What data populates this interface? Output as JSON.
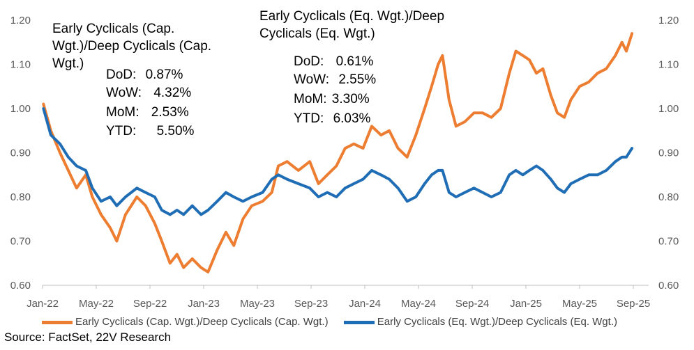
{
  "chart_data": {
    "type": "line",
    "x_tick_labels": [
      "Jan-22",
      "May-22",
      "Sep-22",
      "Jan-23",
      "May-23",
      "Sep-23",
      "Jan-24",
      "May-24",
      "Sep-24",
      "Jan-25",
      "May-25",
      "Sep-25"
    ],
    "y_tick_labels": [
      "0.60",
      "0.70",
      "0.80",
      "0.90",
      "1.00",
      "1.10",
      "1.20"
    ],
    "ylim": [
      0.6,
      1.2
    ],
    "xlim": [
      "2022-01-01",
      "2025-09-15"
    ],
    "grid": false,
    "secondary_axis": "right (same scale)",
    "legend_position": "bottom",
    "series": [
      {
        "name": "Early Cyclicals (Cap. Wgt.)/Deep Cyclicals (Cap. Wgt.)",
        "color": "#ED7D31",
        "points": [
          [
            "2022-01-03",
            1.01
          ],
          [
            "2022-01-20",
            0.95
          ],
          [
            "2022-02-10",
            0.9
          ],
          [
            "2022-03-01",
            0.86
          ],
          [
            "2022-03-20",
            0.82
          ],
          [
            "2022-04-10",
            0.85
          ],
          [
            "2022-04-25",
            0.8
          ],
          [
            "2022-05-15",
            0.76
          ],
          [
            "2022-06-05",
            0.73
          ],
          [
            "2022-06-20",
            0.7
          ],
          [
            "2022-07-10",
            0.76
          ],
          [
            "2022-08-05",
            0.8
          ],
          [
            "2022-08-25",
            0.78
          ],
          [
            "2022-09-15",
            0.74
          ],
          [
            "2022-10-01",
            0.7
          ],
          [
            "2022-10-20",
            0.65
          ],
          [
            "2022-11-05",
            0.67
          ],
          [
            "2022-11-20",
            0.64
          ],
          [
            "2022-12-10",
            0.66
          ],
          [
            "2022-12-30",
            0.64
          ],
          [
            "2023-01-15",
            0.63
          ],
          [
            "2023-02-05",
            0.68
          ],
          [
            "2023-02-25",
            0.72
          ],
          [
            "2023-03-15",
            0.69
          ],
          [
            "2023-04-05",
            0.75
          ],
          [
            "2023-04-25",
            0.78
          ],
          [
            "2023-05-20",
            0.79
          ],
          [
            "2023-06-10",
            0.81
          ],
          [
            "2023-06-25",
            0.87
          ],
          [
            "2023-07-15",
            0.88
          ],
          [
            "2023-08-10",
            0.86
          ],
          [
            "2023-09-05",
            0.88
          ],
          [
            "2023-09-25",
            0.83
          ],
          [
            "2023-10-15",
            0.85
          ],
          [
            "2023-11-05",
            0.87
          ],
          [
            "2023-11-25",
            0.91
          ],
          [
            "2023-12-15",
            0.92
          ],
          [
            "2024-01-05",
            0.91
          ],
          [
            "2024-01-25",
            0.96
          ],
          [
            "2024-02-15",
            0.94
          ],
          [
            "2024-03-05",
            0.95
          ],
          [
            "2024-03-25",
            0.91
          ],
          [
            "2024-04-15",
            0.89
          ],
          [
            "2024-05-05",
            0.94
          ],
          [
            "2024-05-25",
            1.0
          ],
          [
            "2024-06-10",
            1.05
          ],
          [
            "2024-06-25",
            1.1
          ],
          [
            "2024-07-05",
            1.12
          ],
          [
            "2024-07-20",
            1.02
          ],
          [
            "2024-08-05",
            0.96
          ],
          [
            "2024-08-25",
            0.97
          ],
          [
            "2024-09-15",
            0.99
          ],
          [
            "2024-10-05",
            0.99
          ],
          [
            "2024-10-25",
            0.98
          ],
          [
            "2024-11-15",
            1.0
          ],
          [
            "2024-12-05",
            1.08
          ],
          [
            "2024-12-20",
            1.13
          ],
          [
            "2025-01-05",
            1.12
          ],
          [
            "2025-01-20",
            1.11
          ],
          [
            "2025-02-05",
            1.08
          ],
          [
            "2025-02-20",
            1.09
          ],
          [
            "2025-03-10",
            1.03
          ],
          [
            "2025-03-25",
            0.99
          ],
          [
            "2025-04-10",
            0.98
          ],
          [
            "2025-04-25",
            1.02
          ],
          [
            "2025-05-15",
            1.05
          ],
          [
            "2025-06-05",
            1.06
          ],
          [
            "2025-06-25",
            1.08
          ],
          [
            "2025-07-15",
            1.09
          ],
          [
            "2025-08-05",
            1.12
          ],
          [
            "2025-08-20",
            1.15
          ],
          [
            "2025-08-30",
            1.13
          ],
          [
            "2025-09-12",
            1.17
          ]
        ]
      },
      {
        "name": "Early Cyclicals (Eq. Wgt.)/Deep Cyclicals (Eq. Wgt.)",
        "color": "#1F6DB5",
        "points": [
          [
            "2022-01-03",
            1.0
          ],
          [
            "2022-01-20",
            0.94
          ],
          [
            "2022-02-10",
            0.92
          ],
          [
            "2022-03-01",
            0.89
          ],
          [
            "2022-03-20",
            0.87
          ],
          [
            "2022-04-10",
            0.86
          ],
          [
            "2022-04-25",
            0.82
          ],
          [
            "2022-05-15",
            0.79
          ],
          [
            "2022-06-05",
            0.8
          ],
          [
            "2022-06-20",
            0.78
          ],
          [
            "2022-07-10",
            0.8
          ],
          [
            "2022-08-05",
            0.82
          ],
          [
            "2022-08-25",
            0.81
          ],
          [
            "2022-09-15",
            0.8
          ],
          [
            "2022-10-01",
            0.77
          ],
          [
            "2022-10-20",
            0.76
          ],
          [
            "2022-11-05",
            0.77
          ],
          [
            "2022-11-20",
            0.76
          ],
          [
            "2022-12-10",
            0.78
          ],
          [
            "2022-12-30",
            0.76
          ],
          [
            "2023-01-15",
            0.77
          ],
          [
            "2023-02-05",
            0.79
          ],
          [
            "2023-02-25",
            0.81
          ],
          [
            "2023-03-15",
            0.8
          ],
          [
            "2023-04-05",
            0.79
          ],
          [
            "2023-04-25",
            0.8
          ],
          [
            "2023-05-20",
            0.81
          ],
          [
            "2023-06-10",
            0.84
          ],
          [
            "2023-06-25",
            0.85
          ],
          [
            "2023-07-15",
            0.84
          ],
          [
            "2023-08-10",
            0.83
          ],
          [
            "2023-09-05",
            0.82
          ],
          [
            "2023-09-25",
            0.8
          ],
          [
            "2023-10-15",
            0.81
          ],
          [
            "2023-11-05",
            0.8
          ],
          [
            "2023-11-25",
            0.82
          ],
          [
            "2023-12-15",
            0.83
          ],
          [
            "2024-01-05",
            0.84
          ],
          [
            "2024-01-25",
            0.86
          ],
          [
            "2024-02-15",
            0.85
          ],
          [
            "2024-03-05",
            0.84
          ],
          [
            "2024-03-25",
            0.82
          ],
          [
            "2024-04-15",
            0.79
          ],
          [
            "2024-05-05",
            0.8
          ],
          [
            "2024-05-25",
            0.83
          ],
          [
            "2024-06-10",
            0.85
          ],
          [
            "2024-06-25",
            0.86
          ],
          [
            "2024-07-05",
            0.86
          ],
          [
            "2024-07-20",
            0.81
          ],
          [
            "2024-08-05",
            0.8
          ],
          [
            "2024-08-25",
            0.81
          ],
          [
            "2024-09-15",
            0.82
          ],
          [
            "2024-10-05",
            0.81
          ],
          [
            "2024-10-25",
            0.8
          ],
          [
            "2024-11-15",
            0.81
          ],
          [
            "2024-12-05",
            0.85
          ],
          [
            "2024-12-20",
            0.86
          ],
          [
            "2025-01-05",
            0.85
          ],
          [
            "2025-01-20",
            0.86
          ],
          [
            "2025-02-05",
            0.87
          ],
          [
            "2025-02-20",
            0.86
          ],
          [
            "2025-03-10",
            0.84
          ],
          [
            "2025-03-25",
            0.82
          ],
          [
            "2025-04-10",
            0.81
          ],
          [
            "2025-04-25",
            0.83
          ],
          [
            "2025-05-15",
            0.84
          ],
          [
            "2025-06-05",
            0.85
          ],
          [
            "2025-06-25",
            0.85
          ],
          [
            "2025-07-15",
            0.86
          ],
          [
            "2025-08-05",
            0.88
          ],
          [
            "2025-08-20",
            0.89
          ],
          [
            "2025-08-30",
            0.89
          ],
          [
            "2025-09-12",
            0.91
          ]
        ]
      }
    ],
    "annotations": {
      "cap": {
        "title_lines": [
          "Early Cyclicals (Cap.",
          "Wgt.)/Deep Cyclicals (Cap.",
          "Wgt.)"
        ],
        "stats": [
          {
            "label": "DoD:",
            "value": "0.87%"
          },
          {
            "label": "WoW:",
            "value": "4.32%"
          },
          {
            "label": "MoM:",
            "value": "2.53%"
          },
          {
            "label": "YTD:",
            "value": "5.50%"
          }
        ]
      },
      "eq": {
        "title_lines": [
          "Early Cyclicals (Eq. Wgt.)/Deep",
          "Cyclicals (Eq. Wgt.)"
        ],
        "stats": [
          {
            "label": "DoD:",
            "value": "0.61%"
          },
          {
            "label": "WoW:",
            "value": "2.55%"
          },
          {
            "label": "MoM:",
            "value": "3.30%"
          },
          {
            "label": "YTD:",
            "value": "6.03%"
          }
        ]
      }
    },
    "source": "Source: FactSet, 22V Research"
  }
}
